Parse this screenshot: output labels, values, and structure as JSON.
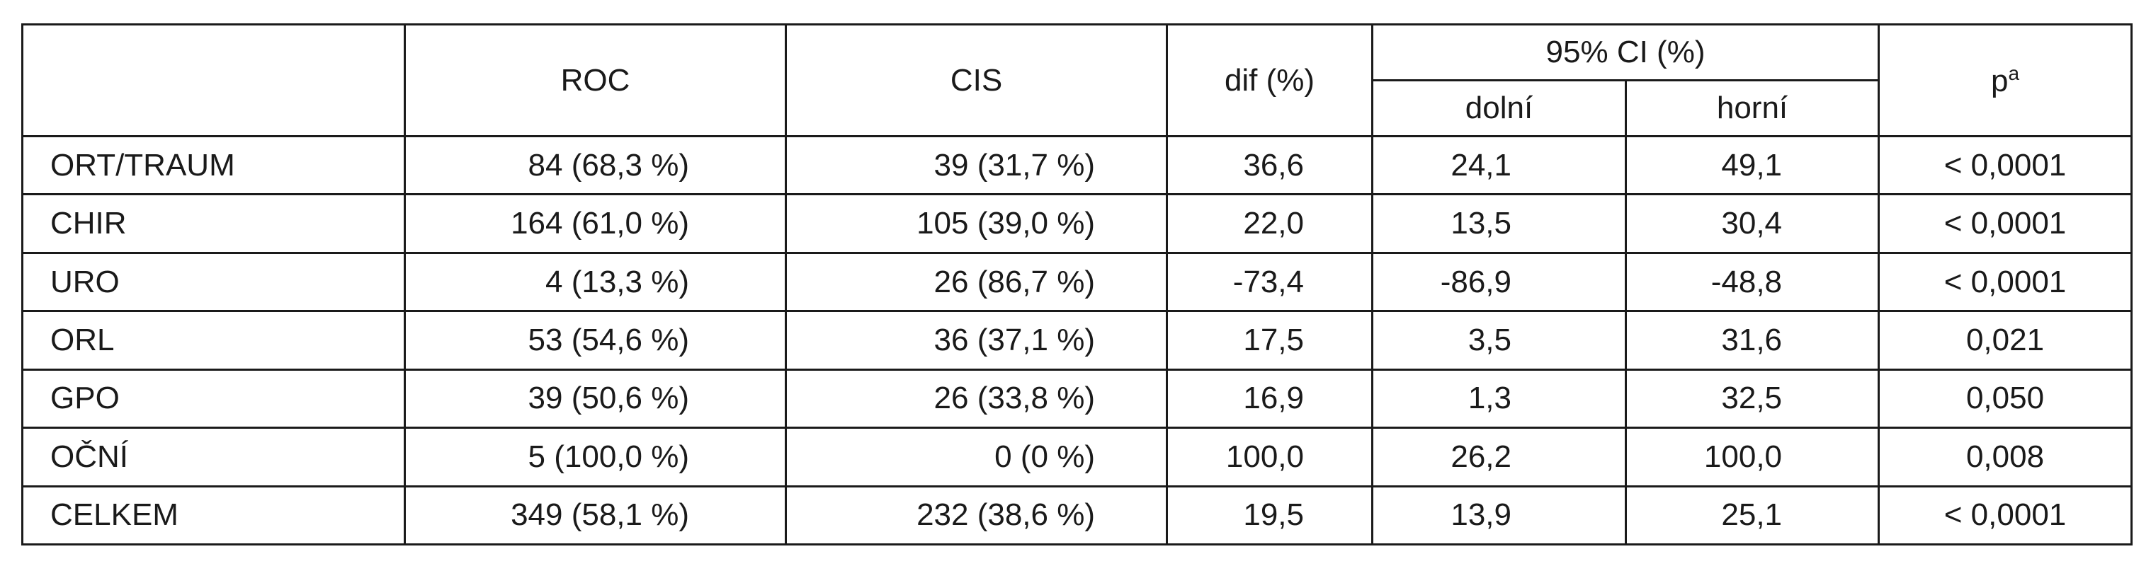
{
  "headers": {
    "roc": "ROC",
    "cis": "CIS",
    "dif": "dif (%)",
    "ci": "95% CI (%)",
    "lower": "dolní",
    "upper": "horní",
    "p": "p",
    "p_sup": "a"
  },
  "rows": [
    {
      "label": "ORT/TRAUM",
      "roc": "84 (68,3 %)",
      "cis": "39 (31,7 %)",
      "dif": "36,6",
      "lower": "24,1",
      "upper": "49,1",
      "p": "< 0,0001"
    },
    {
      "label": "CHIR",
      "roc": "164 (61,0 %)",
      "cis": "105 (39,0 %)",
      "dif": "22,0",
      "lower": "13,5",
      "upper": "30,4",
      "p": "< 0,0001"
    },
    {
      "label": "URO",
      "roc": "4 (13,3 %)",
      "cis": "26 (86,7 %)",
      "dif": "-73,4",
      "lower": "-86,9",
      "upper": "-48,8",
      "p": "< 0,0001"
    },
    {
      "label": "ORL",
      "roc": "53 (54,6 %)",
      "cis": "36 (37,1 %)",
      "dif": "17,5",
      "lower": "3,5",
      "upper": "31,6",
      "p": "0,021"
    },
    {
      "label": "GPO",
      "roc": "39 (50,6 %)",
      "cis": "26 (33,8 %)",
      "dif": "16,9",
      "lower": "1,3",
      "upper": "32,5",
      "p": "0,050"
    },
    {
      "label": "OČNÍ",
      "roc": "5 (100,0 %)",
      "cis": "0 (0 %)",
      "dif": "100,0",
      "lower": "26,2",
      "upper": "100,0",
      "p": "0,008"
    },
    {
      "label": "CELKEM",
      "roc": "349 (58,1 %)",
      "cis": "232 (38,6 %)",
      "dif": "19,5",
      "lower": "13,9",
      "upper": "25,1",
      "p": "< 0,0001"
    }
  ]
}
